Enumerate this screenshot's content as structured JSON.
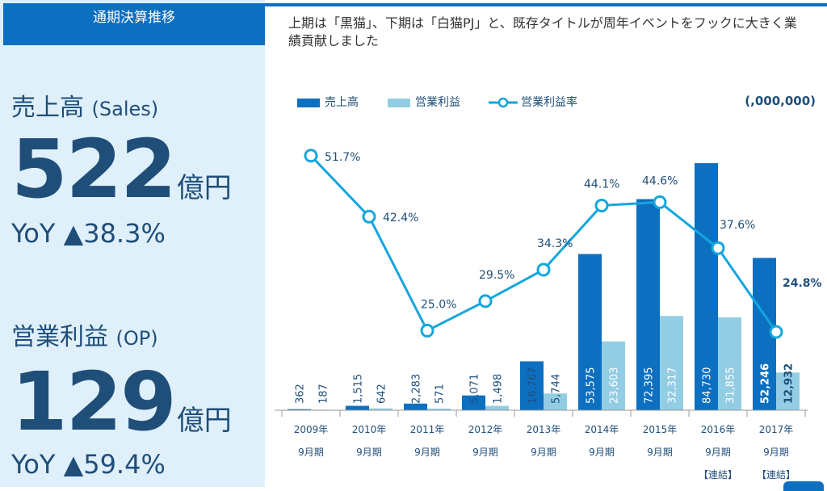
{
  "panel": {
    "header": "通期決算推移",
    "sales": {
      "label": "売上高",
      "label_en": "(Sales)",
      "value": "522",
      "unit": "億円",
      "yoy": "YoY ▲38.3%"
    },
    "op": {
      "label": "営業利益",
      "label_en": "(OP)",
      "value": "129",
      "unit": "億円",
      "yoy": "YoY ▲59.4%"
    }
  },
  "headline": "上期は「黒猫」、下期は「白猫PJ」と、既存タイトルが周年イベントをフックに大きく業績貢献しました",
  "colors": {
    "sales": "#0d6fc0",
    "op": "#93cde4",
    "margin": "#14a6de",
    "panel_bg": "#dff0fb",
    "text": "#1f4e79"
  },
  "chart_data": {
    "type": "bar",
    "unit_label": "(,000,000)",
    "legend_position": "top-left",
    "categories": [
      [
        "2009年",
        "9月期",
        ""
      ],
      [
        "2010年",
        "9月期",
        ""
      ],
      [
        "2011年",
        "9月期",
        ""
      ],
      [
        "2012年",
        "9月期",
        ""
      ],
      [
        "2013年",
        "9月期",
        ""
      ],
      [
        "2014年",
        "9月期",
        ""
      ],
      [
        "2015年",
        "9月期",
        ""
      ],
      [
        "2016年",
        "9月期",
        "【連結】"
      ],
      [
        "2017年",
        "9月期",
        "【連結】"
      ]
    ],
    "series": [
      {
        "name": "売上高",
        "type": "bar",
        "values": [
          362,
          1515,
          2283,
          5071,
          16767,
          53575,
          72395,
          84730,
          52246
        ],
        "labels": [
          "362",
          "1,515",
          "2,283",
          "5,071",
          "16,767",
          "53,575",
          "72,395",
          "84,730",
          "52,246"
        ]
      },
      {
        "name": "営業利益",
        "type": "bar",
        "values": [
          187,
          642,
          571,
          1498,
          5744,
          23603,
          32317,
          31855,
          12932
        ],
        "labels": [
          "187",
          "642",
          "571",
          "1,498",
          "5,744",
          "23,603",
          "32,317",
          "31,855",
          "12,932"
        ]
      },
      {
        "name": "営業利益率",
        "type": "line",
        "values": [
          51.7,
          42.4,
          25.0,
          29.5,
          34.3,
          44.1,
          44.6,
          37.6,
          24.8
        ],
        "labels": [
          "51.7%",
          "42.4%",
          "25.0%",
          "29.5%",
          "34.3%",
          "44.1%",
          "44.6%",
          "37.6%",
          "24.8%"
        ]
      }
    ],
    "ylim_bars": [
      0,
      90000
    ],
    "ylim_line": [
      0,
      70
    ],
    "grid": false
  }
}
